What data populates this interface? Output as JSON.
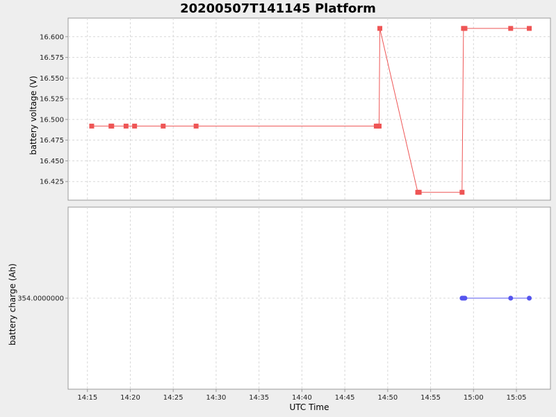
{
  "chart_data": {
    "title": "20200507T141145 Platform",
    "xlabel": "UTC Time",
    "x_ticks": [
      "14:15",
      "14:20",
      "14:25",
      "14:30",
      "14:35",
      "14:40",
      "14:45",
      "14:50",
      "14:55",
      "15:00",
      "15:05"
    ],
    "colors": {
      "voltage": "#ee5555",
      "charge": "#5555ee",
      "background": "#eeeeee",
      "plot_background": "#ffffff"
    },
    "charts": [
      {
        "type": "line",
        "ylabel": "battery voltage (V)",
        "y_ticks": [
          "16.425",
          "16.450",
          "16.475",
          "16.500",
          "16.525",
          "16.550",
          "16.575",
          "16.600"
        ],
        "grid": true,
        "series": [
          {
            "marker": "square",
            "x": [
              "14:15:30",
              "14:17:45",
              "14:17:50",
              "14:19:30",
              "14:20:30",
              "14:23:50",
              "14:27:40",
              "14:48:40",
              "14:48:50",
              "14:49:00",
              "14:49:05",
              "14:53:30",
              "14:53:40",
              "14:58:40",
              "14:58:50",
              "14:59:00",
              "15:04:20",
              "15:06:30"
            ],
            "y": [
              16.492,
              16.492,
              16.492,
              16.492,
              16.492,
              16.492,
              16.492,
              16.492,
              16.492,
              16.492,
              16.61,
              16.412,
              16.412,
              16.412,
              16.61,
              16.61,
              16.61,
              16.61
            ]
          }
        ]
      },
      {
        "type": "line",
        "ylabel": "battery charge (Ah)",
        "y_ticks": [
          "354.0000000"
        ],
        "grid": true,
        "series": [
          {
            "marker": "circle",
            "x": [
              "14:58:40",
              "14:58:50",
              "14:59:00",
              "15:04:20",
              "15:06:30"
            ],
            "y": [
              354,
              354,
              354,
              354,
              354
            ]
          }
        ]
      }
    ]
  }
}
